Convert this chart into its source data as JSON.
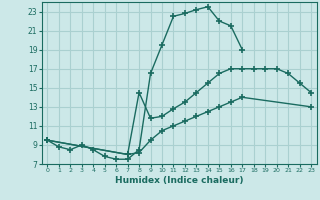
{
  "xlabel": "Humidex (Indice chaleur)",
  "xlim": [
    -0.5,
    23.5
  ],
  "ylim": [
    7,
    24
  ],
  "bg_color": "#cce8e8",
  "line_color": "#1a6b60",
  "grid_color": "#aad0d0",
  "curve1_x": [
    0,
    1,
    2,
    3,
    4,
    5,
    6,
    7,
    8,
    9,
    10,
    11,
    12,
    13,
    14,
    15,
    16,
    17
  ],
  "curve1_y": [
    9.5,
    8.8,
    8.5,
    9.0,
    8.5,
    7.8,
    7.5,
    7.5,
    8.5,
    16.5,
    19.5,
    22.5,
    22.8,
    23.2,
    23.5,
    22.0,
    21.5,
    19.0
  ],
  "curve2_x": [
    0,
    7,
    8,
    9,
    10,
    11,
    12,
    13,
    14,
    15,
    16,
    17,
    18,
    19,
    20,
    21,
    22,
    23
  ],
  "curve2_y": [
    9.5,
    8.0,
    14.5,
    11.8,
    12.0,
    12.8,
    13.5,
    14.5,
    15.5,
    16.5,
    17.0,
    17.0,
    17.0,
    17.0,
    17.0,
    16.5,
    15.5,
    14.5
  ],
  "curve3_x": [
    0,
    7,
    8,
    9,
    10,
    11,
    12,
    13,
    14,
    15,
    16,
    17,
    23
  ],
  "curve3_y": [
    9.5,
    8.0,
    8.2,
    9.5,
    10.5,
    11.0,
    11.5,
    12.0,
    12.5,
    13.0,
    13.5,
    14.0,
    13.0
  ]
}
